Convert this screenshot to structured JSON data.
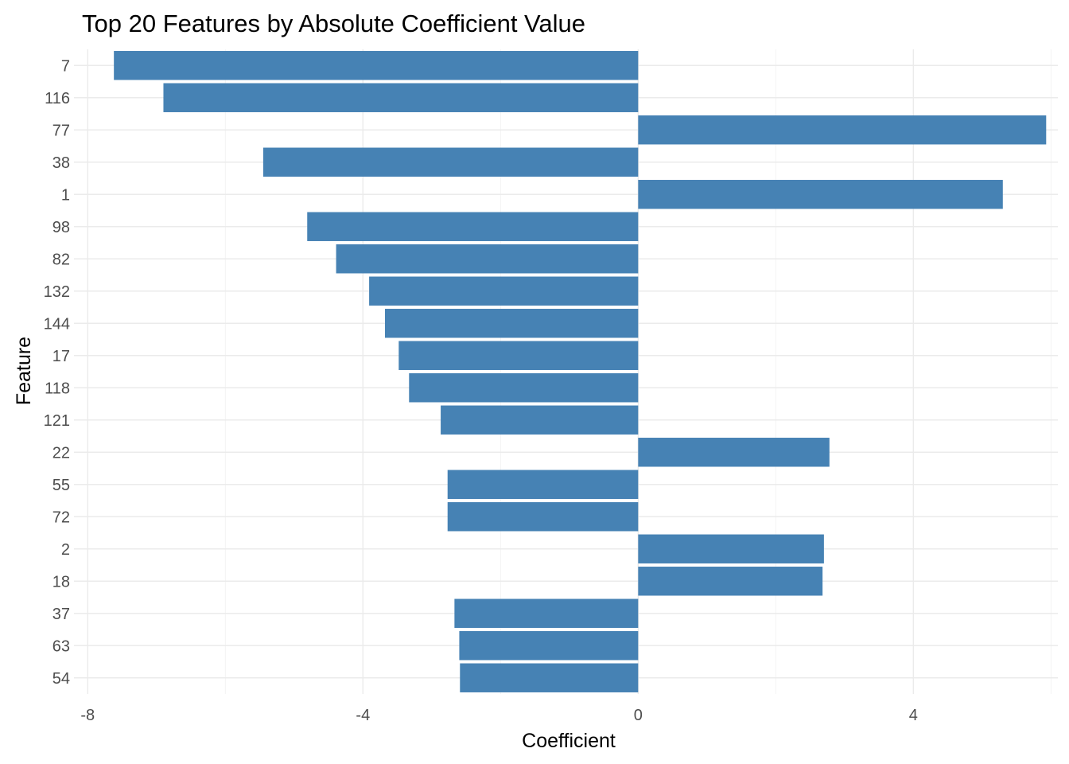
{
  "chart_data": {
    "type": "bar",
    "orientation": "horizontal",
    "title": "Top 20 Features by Absolute Coefficient Value",
    "xlabel": "Coefficient",
    "ylabel": "Feature",
    "categories": [
      "7",
      "116",
      "77",
      "38",
      "1",
      "98",
      "82",
      "132",
      "144",
      "17",
      "118",
      "121",
      "22",
      "55",
      "72",
      "2",
      "18",
      "37",
      "63",
      "54"
    ],
    "values": [
      -7.62,
      -6.9,
      5.93,
      -5.45,
      5.3,
      -4.81,
      -4.39,
      -3.91,
      -3.68,
      -3.48,
      -3.33,
      -2.87,
      2.78,
      -2.77,
      -2.77,
      2.7,
      2.68,
      -2.67,
      -2.6,
      -2.59
    ],
    "xlim": [
      -8.2,
      6.1
    ],
    "xticks": [
      -8,
      -4,
      0,
      4
    ],
    "bar_color": "#4682b4",
    "grid": true,
    "legend": "none"
  }
}
